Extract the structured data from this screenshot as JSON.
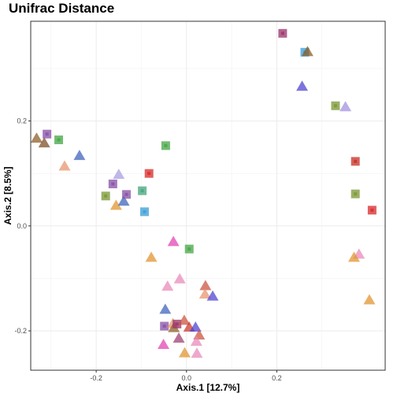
{
  "chart_data": {
    "type": "scatter",
    "title": "Unifrac Distance",
    "xlabel": "Axis.1   [12.7%]",
    "ylabel": "Axis.2   [8.5%]",
    "xlim": [
      -0.345,
      0.44
    ],
    "ylim": [
      -0.275,
      0.39
    ],
    "grid": true,
    "x_ticks": [
      -0.2,
      0.0,
      0.2
    ],
    "x_tick_labels": [
      "-0.2",
      "0.0",
      "0.2"
    ],
    "y_ticks": [
      -0.2,
      0.0,
      0.2
    ],
    "y_tick_labels": [
      "-0.2",
      "0.0",
      "0.2"
    ],
    "points": [
      {
        "x": 0.213,
        "y": 0.367,
        "shape": "square",
        "color": "#9c3a6e"
      },
      {
        "x": 0.262,
        "y": 0.331,
        "shape": "square",
        "color": "#3f9fd8"
      },
      {
        "x": 0.268,
        "y": 0.331,
        "shape": "triangle",
        "color": "#8a5a1e"
      },
      {
        "x": 0.256,
        "y": 0.265,
        "shape": "triangle",
        "color": "#4b3fd0"
      },
      {
        "x": 0.33,
        "y": 0.229,
        "shape": "square",
        "color": "#7e9a3a"
      },
      {
        "x": 0.352,
        "y": 0.226,
        "shape": "triangle",
        "color": "#9e8fde"
      },
      {
        "x": 0.374,
        "y": 0.123,
        "shape": "square",
        "color": "#c9342b"
      },
      {
        "x": 0.374,
        "y": 0.061,
        "shape": "square",
        "color": "#7e9a3a"
      },
      {
        "x": 0.411,
        "y": 0.03,
        "shape": "square",
        "color": "#d93030"
      },
      {
        "x": 0.382,
        "y": -0.055,
        "shape": "triangle",
        "color": "#e888b8"
      },
      {
        "x": 0.371,
        "y": -0.061,
        "shape": "triangle",
        "color": "#e0922a"
      },
      {
        "x": 0.405,
        "y": -0.142,
        "shape": "triangle",
        "color": "#e0922a"
      },
      {
        "x": -0.332,
        "y": 0.166,
        "shape": "triangle",
        "color": "#8a5a1e"
      },
      {
        "x": -0.315,
        "y": 0.157,
        "shape": "triangle",
        "color": "#7a4a1e"
      },
      {
        "x": -0.309,
        "y": 0.175,
        "shape": "square",
        "color": "#8a55a8"
      },
      {
        "x": -0.283,
        "y": 0.164,
        "shape": "square",
        "color": "#4aa84a"
      },
      {
        "x": -0.27,
        "y": 0.113,
        "shape": "triangle",
        "color": "#e8926a"
      },
      {
        "x": -0.237,
        "y": 0.133,
        "shape": "triangle",
        "color": "#3a5fb8"
      },
      {
        "x": -0.15,
        "y": 0.097,
        "shape": "triangle",
        "color": "#a99ae0"
      },
      {
        "x": -0.163,
        "y": 0.08,
        "shape": "square",
        "color": "#8a55a8"
      },
      {
        "x": -0.179,
        "y": 0.057,
        "shape": "square",
        "color": "#7e9a3a"
      },
      {
        "x": -0.156,
        "y": 0.038,
        "shape": "triangle",
        "color": "#e0922a"
      },
      {
        "x": -0.139,
        "y": 0.046,
        "shape": "triangle",
        "color": "#3a5fb8"
      },
      {
        "x": -0.133,
        "y": 0.06,
        "shape": "square",
        "color": "#8a55a8"
      },
      {
        "x": -0.098,
        "y": 0.067,
        "shape": "square",
        "color": "#4aa880"
      },
      {
        "x": -0.083,
        "y": 0.1,
        "shape": "square",
        "color": "#d93030"
      },
      {
        "x": -0.046,
        "y": 0.153,
        "shape": "square",
        "color": "#4aa84a"
      },
      {
        "x": -0.093,
        "y": 0.027,
        "shape": "square",
        "color": "#3f9fd8"
      },
      {
        "x": -0.078,
        "y": -0.061,
        "shape": "triangle",
        "color": "#e0922a"
      },
      {
        "x": -0.029,
        "y": -0.031,
        "shape": "triangle",
        "color": "#e040b0"
      },
      {
        "x": 0.006,
        "y": -0.044,
        "shape": "square",
        "color": "#4aa84a"
      },
      {
        "x": -0.015,
        "y": -0.102,
        "shape": "triangle",
        "color": "#e888b8"
      },
      {
        "x": -0.042,
        "y": -0.116,
        "shape": "triangle",
        "color": "#e888b8"
      },
      {
        "x": 0.042,
        "y": -0.115,
        "shape": "triangle",
        "color": "#c9503a"
      },
      {
        "x": 0.041,
        "y": -0.131,
        "shape": "triangle",
        "color": "#e8926a"
      },
      {
        "x": 0.058,
        "y": -0.135,
        "shape": "triangle",
        "color": "#4b3fd0"
      },
      {
        "x": -0.047,
        "y": -0.16,
        "shape": "triangle",
        "color": "#3a5fb8"
      },
      {
        "x": -0.049,
        "y": -0.191,
        "shape": "square",
        "color": "#8a55a8"
      },
      {
        "x": -0.03,
        "y": -0.187,
        "shape": "triangle",
        "color": "#e8926a"
      },
      {
        "x": -0.028,
        "y": -0.195,
        "shape": "triangle",
        "color": "#8a5a1e"
      },
      {
        "x": -0.021,
        "y": -0.187,
        "shape": "square",
        "color": "#9c3a6e"
      },
      {
        "x": -0.005,
        "y": -0.181,
        "shape": "triangle",
        "color": "#c9503a"
      },
      {
        "x": 0.006,
        "y": -0.194,
        "shape": "triangle",
        "color": "#c9342b"
      },
      {
        "x": 0.02,
        "y": -0.194,
        "shape": "triangle",
        "color": "#4b3fd0"
      },
      {
        "x": 0.028,
        "y": -0.209,
        "shape": "triangle",
        "color": "#c9503a"
      },
      {
        "x": 0.022,
        "y": -0.221,
        "shape": "triangle",
        "color": "#e888b8"
      },
      {
        "x": -0.017,
        "y": -0.215,
        "shape": "triangle",
        "color": "#9c3a6e"
      },
      {
        "x": -0.051,
        "y": -0.227,
        "shape": "triangle",
        "color": "#e040b0"
      },
      {
        "x": -0.004,
        "y": -0.243,
        "shape": "triangle",
        "color": "#e0922a"
      },
      {
        "x": 0.023,
        "y": -0.244,
        "shape": "triangle",
        "color": "#e888b8"
      }
    ]
  }
}
